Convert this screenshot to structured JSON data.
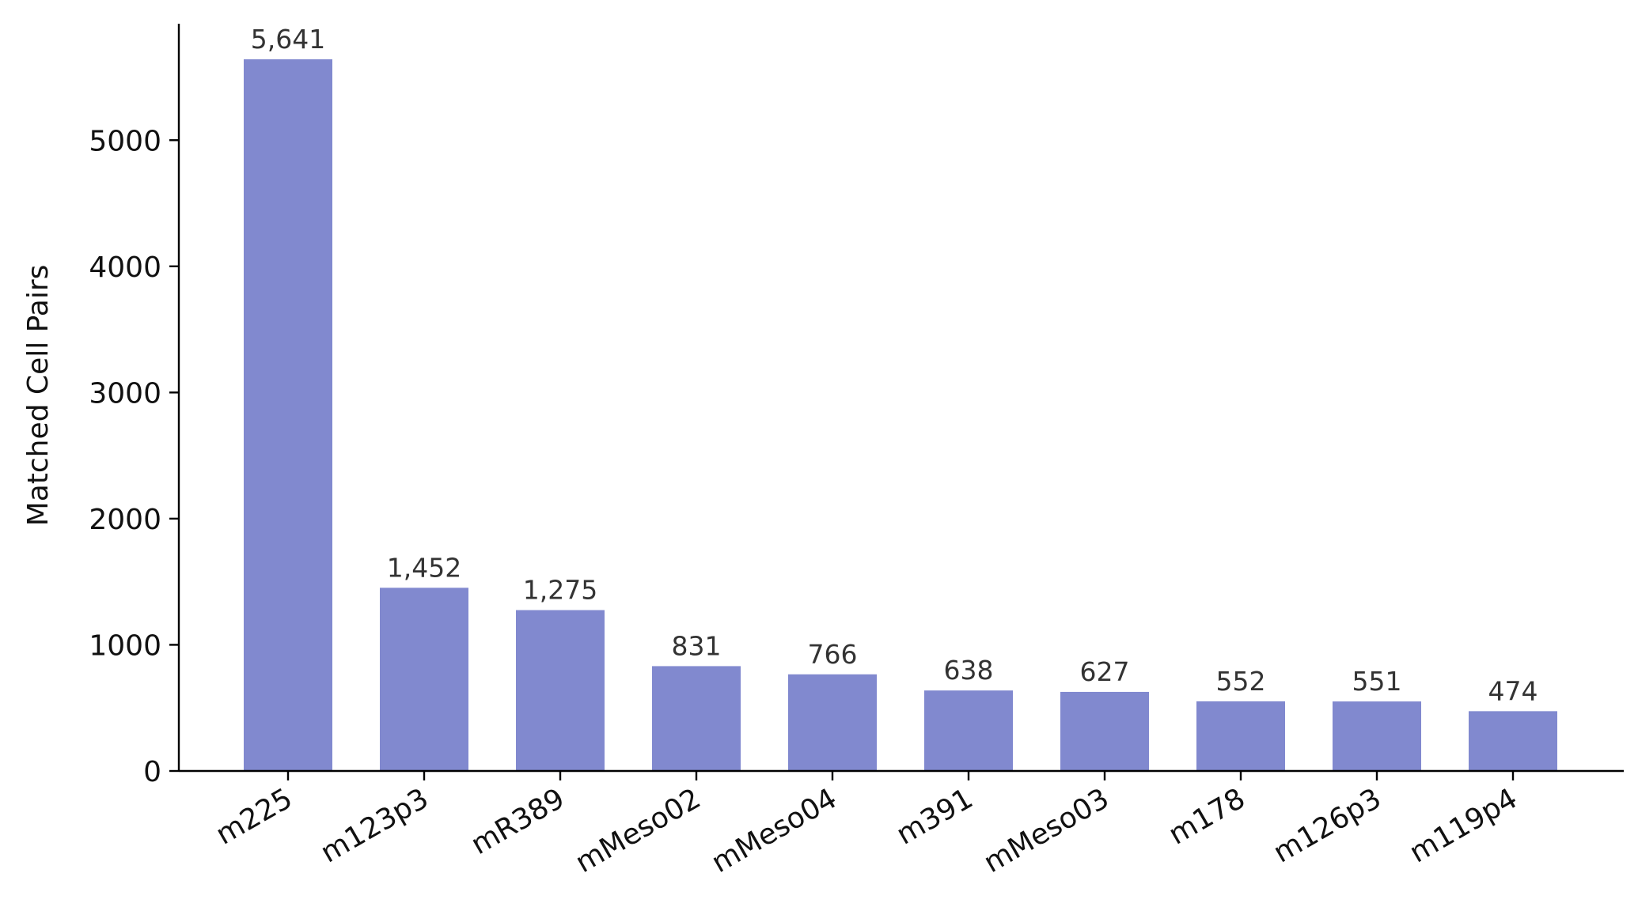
{
  "chart_data": {
    "type": "bar",
    "title": "",
    "xlabel": "",
    "ylabel": "Matched Cell Pairs",
    "categories": [
      "m225",
      "m123p3",
      "mR389",
      "mMeso02",
      "mMeso04",
      "m391",
      "mMeso03",
      "m178",
      "m126p3",
      "m119p4"
    ],
    "values": [
      5641,
      1452,
      1275,
      831,
      766,
      638,
      627,
      552,
      551,
      474
    ],
    "data_labels": [
      "5,641",
      "1,452",
      "1,275",
      "831",
      "766",
      "638",
      "627",
      "552",
      "551",
      "474"
    ],
    "y_ticks": [
      0,
      1000,
      2000,
      3000,
      4000,
      5000
    ],
    "y_tick_labels": [
      "0",
      "1000",
      "2000",
      "3000",
      "4000",
      "5000"
    ],
    "ylim": [
      0,
      5923
    ],
    "grid": false,
    "legend": "none",
    "bar_color": "#8189cf",
    "axis_color": "#000000"
  }
}
